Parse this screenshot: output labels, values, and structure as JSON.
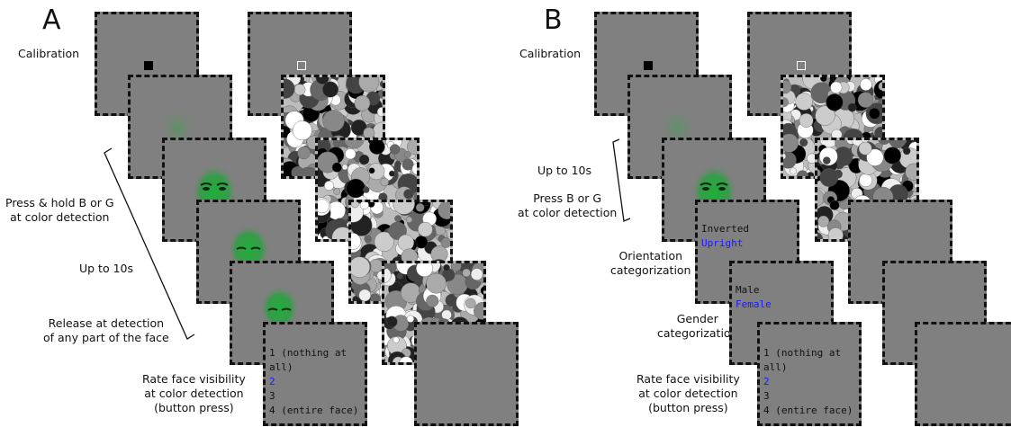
{
  "panel_a": {
    "letter": "A",
    "labels": {
      "calibration": "Calibration",
      "press_hold_1": "Press & hold B or G",
      "press_hold_2": "at color detection",
      "up_to": "Up to 10s",
      "release_1": "Release at detection",
      "release_2": "of any part of the face",
      "rate_1": "Rate face visibility",
      "rate_2": "at color detection",
      "rate_3": "(button press)"
    },
    "rating": {
      "line1": "1 (nothing at all)",
      "line2": "2",
      "line3": "3",
      "line4": "4 (entire face)"
    }
  },
  "panel_b": {
    "letter": "B",
    "labels": {
      "calibration": "Calibration",
      "up_to": "Up to 10s",
      "press_1": "Press B or G",
      "press_2": "at color detection",
      "orient_1": "Orientation",
      "orient_2": "categorization",
      "gender_1": "Gender",
      "gender_2": "categorization",
      "rate_1": "Rate face visibility",
      "rate_2": "at color detection",
      "rate_3": "(button press)"
    },
    "orientation_options": {
      "opt1": "Inverted",
      "opt2": "Upright"
    },
    "gender_options": {
      "opt1": "Male",
      "opt2": "Female"
    },
    "rating": {
      "line1": "1 (nothing at all)",
      "line2": "2",
      "line3": "3",
      "line4": "4 (entire face)"
    }
  },
  "colors": {
    "screen_gray": "#808080",
    "face_green": "#1fae3a",
    "highlight_blue": "#1a1aff"
  }
}
